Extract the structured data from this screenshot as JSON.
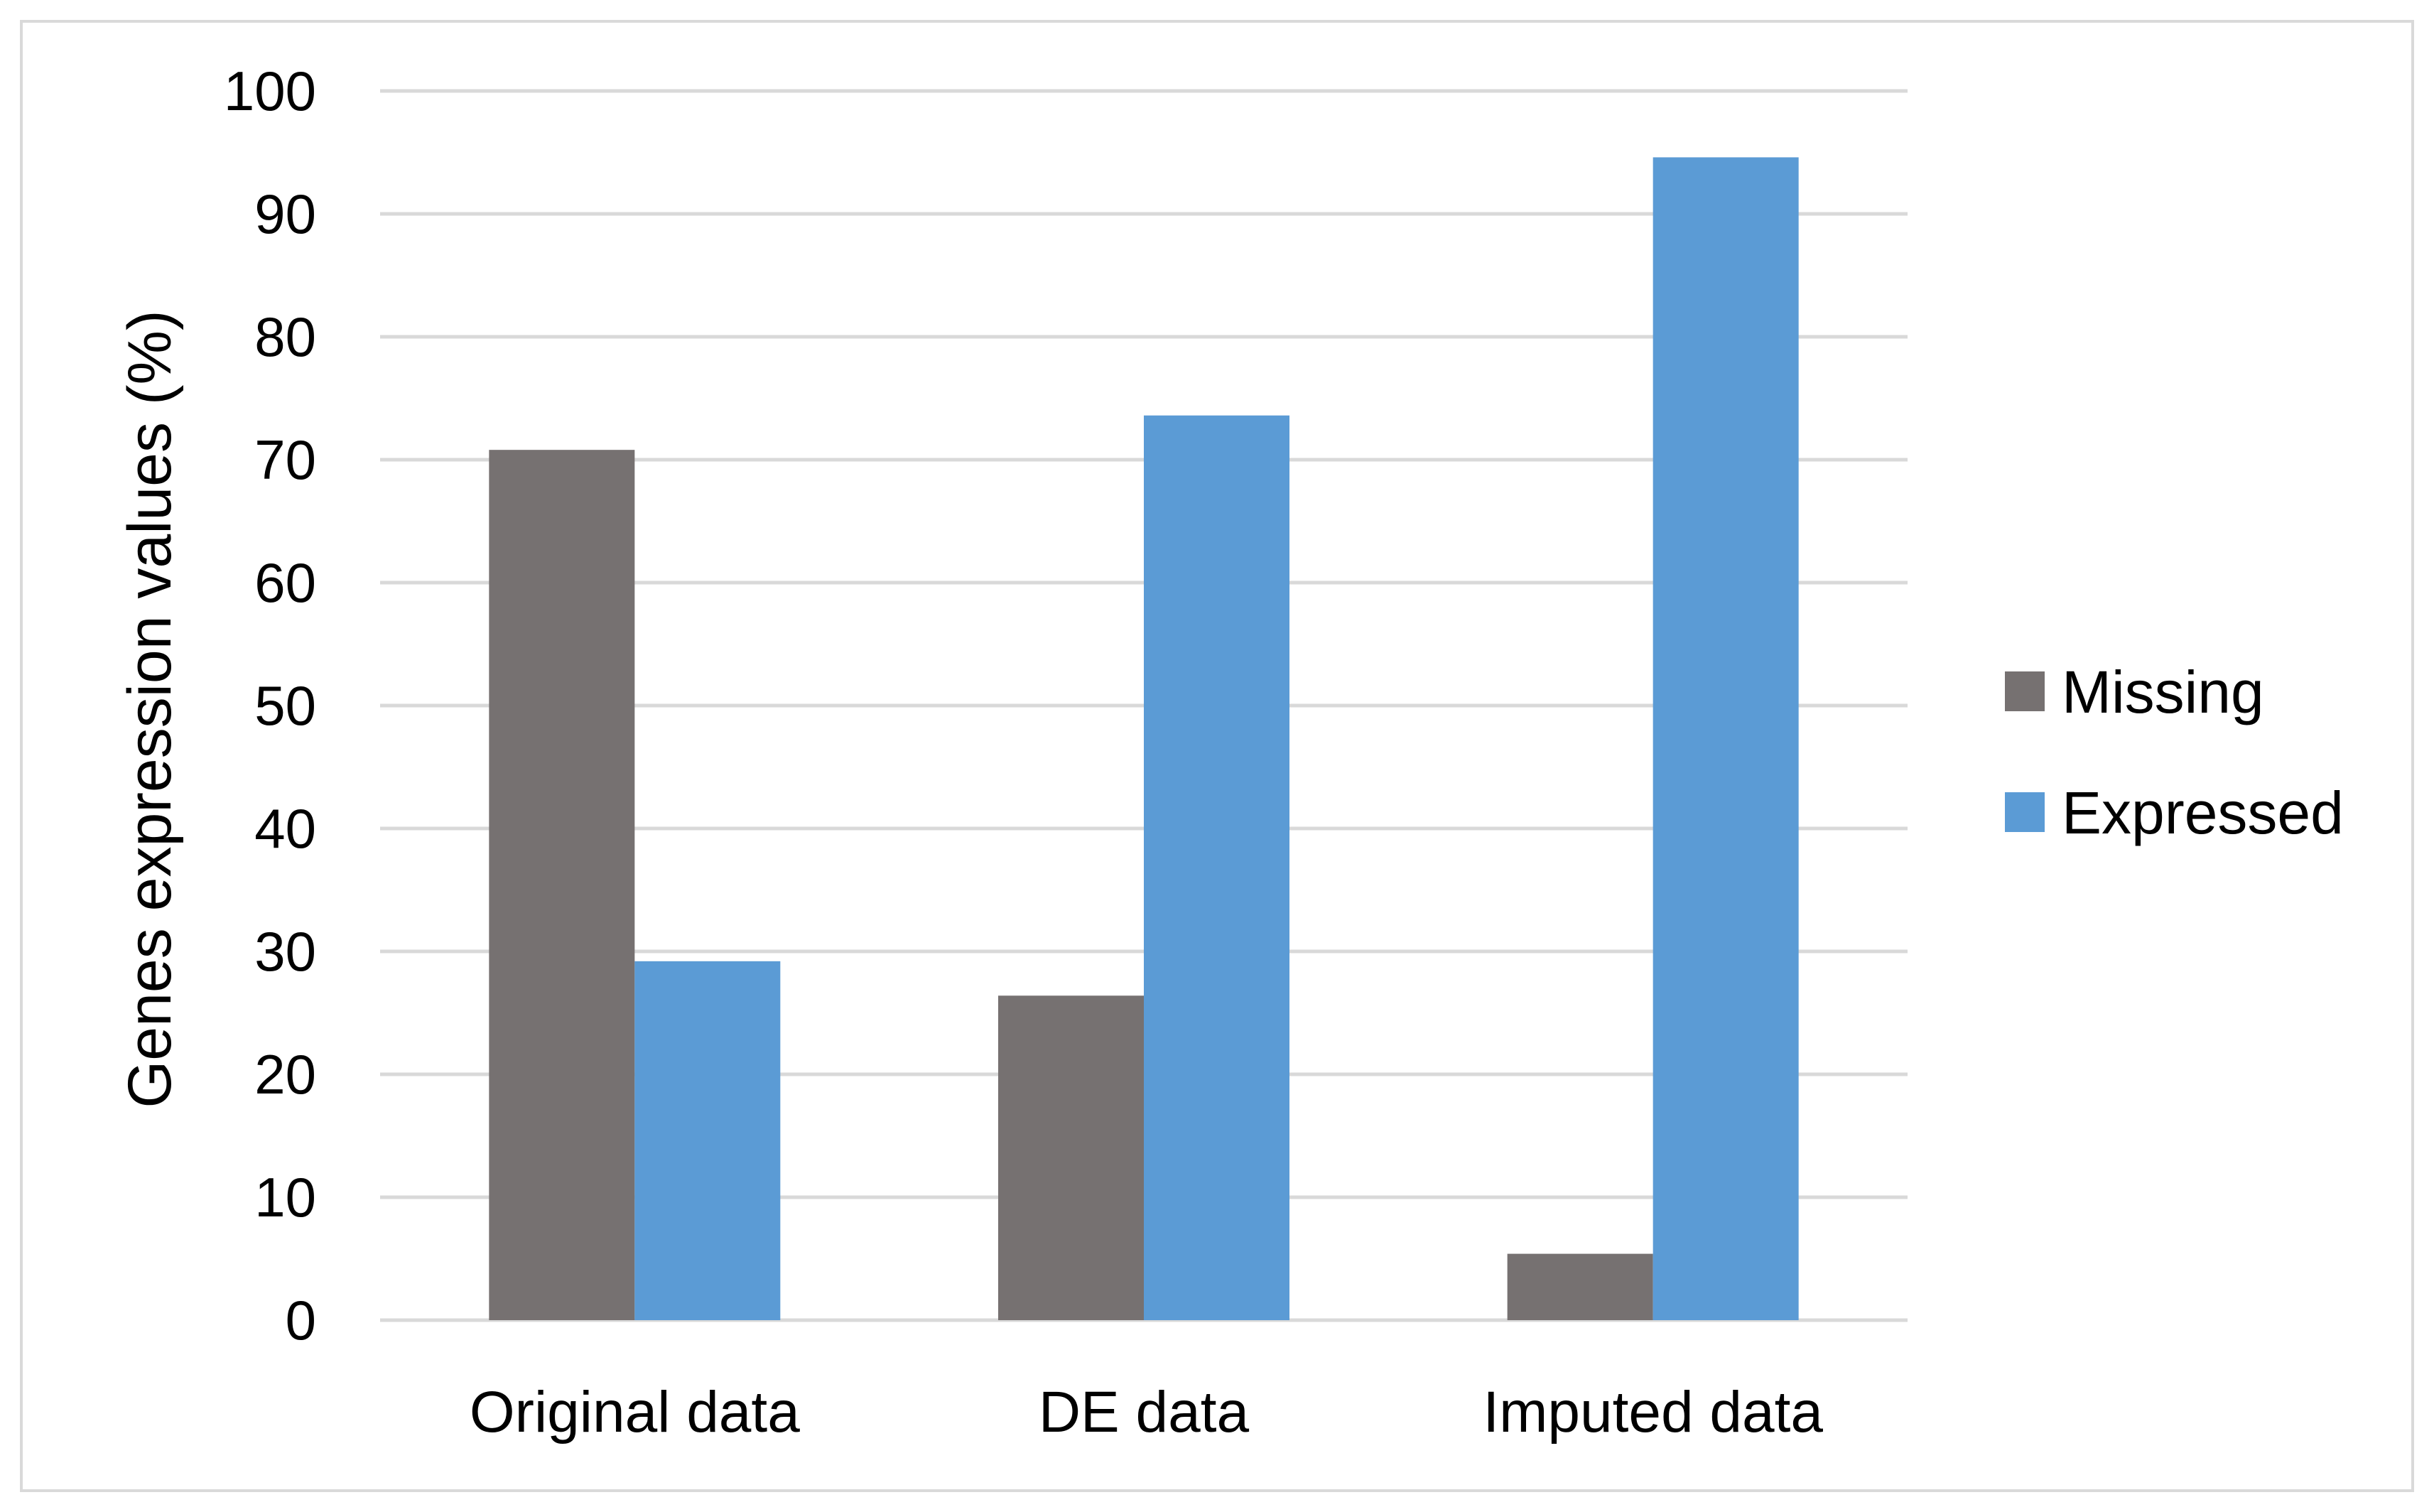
{
  "chart_data": {
    "type": "bar",
    "title": "",
    "xlabel": "",
    "ylabel": "Genes expression values (%)",
    "categories": [
      "Original data",
      "DE data",
      "Imputed data"
    ],
    "series": [
      {
        "name": "Missing",
        "values": [
          70.8,
          26.4,
          5.4
        ],
        "color": "#767171"
      },
      {
        "name": "Expressed",
        "values": [
          29.2,
          73.6,
          94.6
        ],
        "color": "#5b9bd5"
      }
    ],
    "ylim": [
      0,
      100
    ],
    "yticks": [
      0,
      10,
      20,
      30,
      40,
      50,
      60,
      70,
      80,
      90,
      100
    ],
    "grid": true,
    "legend_position": "right",
    "colors": {
      "gridline": "#d9d9d9",
      "frame": "#d9d9d9"
    }
  }
}
